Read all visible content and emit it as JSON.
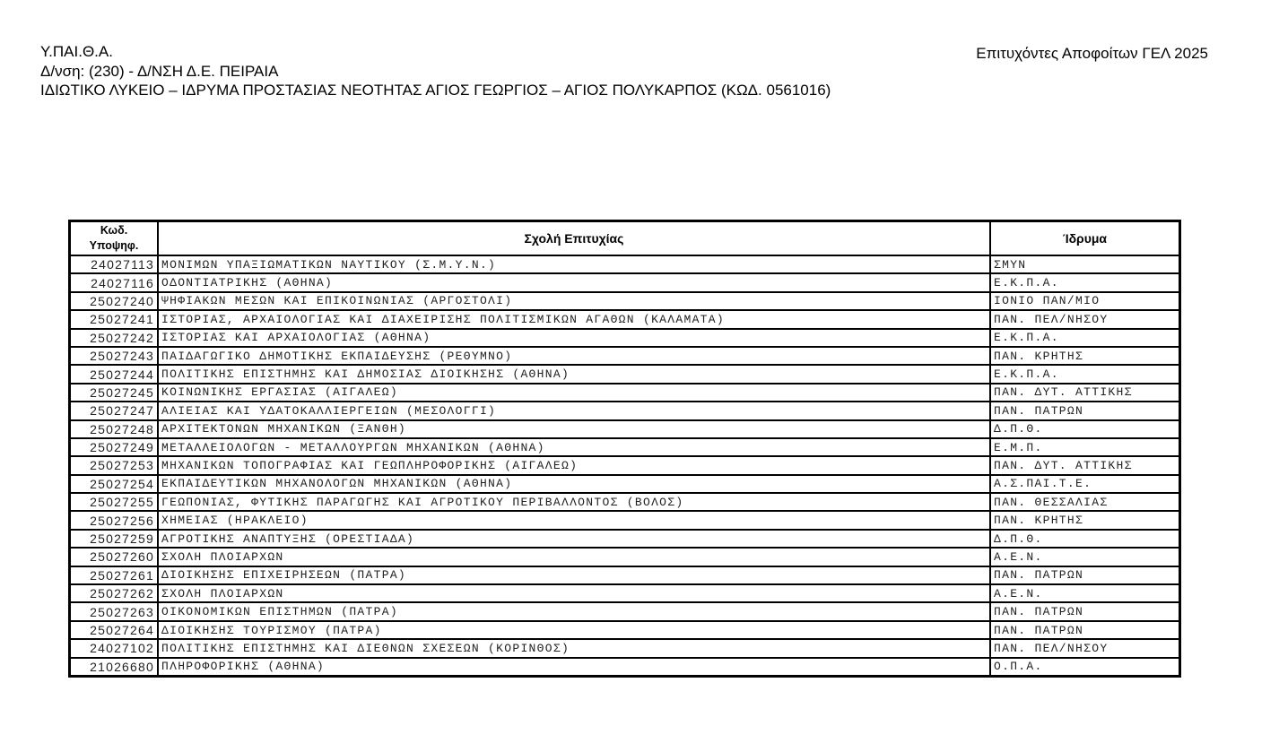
{
  "header": {
    "line1": "Υ.ΠΑΙ.Θ.Α.",
    "line2": "Δ/νση: (230) - Δ/ΝΣΗ Δ.Ε. ΠΕΙΡΑΙΑ",
    "line3": "ΙΔΙΩΤΙΚΟ ΛΥΚΕΙΟ – ΙΔΡΥΜΑ ΠΡΟΣΤΑΣΙΑΣ ΝΕΟΤΗΤΑΣ ΑΓΙΟΣ ΓΕΩΡΓΙΟΣ – ΑΓΙΟΣ ΠΟΛΥΚΑΡΠΟΣ (ΚΩΔ. 0561016)",
    "document_title": "Επιτυχόντες Αποφοίτων ΓΕΛ 2025"
  },
  "table": {
    "columns": {
      "code_line1": "Κωδ.",
      "code_line2": "Υποψηφ.",
      "school": "Σχολή Επιτυχίας",
      "institution": "Ίδρυμα"
    },
    "rows": [
      {
        "code": "24027113",
        "school": "ΜΟΝΙΜΩΝ ΥΠΑΞΙΩΜΑΤΙΚΩΝ ΝΑΥΤΙΚΟΥ (Σ.Μ.Υ.Ν.)",
        "institution": "ΣΜΥΝ"
      },
      {
        "code": "24027116",
        "school": "ΟΔΟΝΤΙΑΤΡΙΚΗΣ (ΑΘΗΝΑ)",
        "institution": "Ε.Κ.Π.Α."
      },
      {
        "code": "25027240",
        "school": "ΨΗΦΙΑΚΩΝ ΜΕΣΩΝ ΚΑΙ ΕΠΙΚΟΙΝΩΝΙΑΣ (ΑΡΓΟΣΤΟΛΙ)",
        "institution": "ΙΟΝΙΟ ΠΑΝ/ΜΙΟ"
      },
      {
        "code": "25027241",
        "school": "ΙΣΤΟΡΙΑΣ, ΑΡΧΑΙΟΛΟΓΙΑΣ ΚΑΙ ΔΙΑΧΕΙΡΙΣΗΣ ΠΟΛΙΤΙΣΜΙΚΩΝ ΑΓΑΘΩΝ (ΚΑΛΑΜΑΤΑ)",
        "institution": "ΠΑΝ. ΠΕΛ/ΝΗΣΟΥ"
      },
      {
        "code": "25027242",
        "school": "ΙΣΤΟΡΙΑΣ ΚΑΙ ΑΡΧΑΙΟΛΟΓΙΑΣ (ΑΘΗΝΑ)",
        "institution": "Ε.Κ.Π.Α."
      },
      {
        "code": "25027243",
        "school": "ΠΑΙΔΑΓΩΓΙΚΟ ΔΗΜΟΤΙΚΗΣ ΕΚΠΑΙΔΕΥΣΗΣ (ΡΕΘΥΜΝΟ)",
        "institution": "ΠΑΝ. ΚΡΗΤΗΣ"
      },
      {
        "code": "25027244",
        "school": "ΠΟΛΙΤΙΚΗΣ ΕΠΙΣΤΗΜΗΣ ΚΑΙ ΔΗΜΟΣΙΑΣ ΔΙΟΙΚΗΣΗΣ (ΑΘΗΝΑ)",
        "institution": "Ε.Κ.Π.Α."
      },
      {
        "code": "25027245",
        "school": "ΚΟΙΝΩΝΙΚΗΣ ΕΡΓΑΣΙΑΣ (ΑΙΓΑΛΕΩ)",
        "institution": "ΠΑΝ. ΔΥΤ. ΑΤΤΙΚΗΣ"
      },
      {
        "code": "25027247",
        "school": "ΑΛΙΕΙΑΣ ΚΑΙ ΥΔΑΤΟΚΑΛΛΙΕΡΓΕΙΩΝ (ΜΕΣΟΛΟΓΓΙ)",
        "institution": "ΠΑΝ. ΠΑΤΡΩΝ"
      },
      {
        "code": "25027248",
        "school": "ΑΡΧΙΤΕΚΤΟΝΩΝ ΜΗΧΑΝΙΚΩΝ (ΞΑΝΘΗ)",
        "institution": "Δ.Π.Θ."
      },
      {
        "code": "25027249",
        "school": "ΜΕΤΑΛΛΕΙΟΛΟΓΩΝ - ΜΕΤΑΛΛΟΥΡΓΩΝ ΜΗΧΑΝΙΚΩΝ (ΑΘΗΝΑ)",
        "institution": "Ε.Μ.Π."
      },
      {
        "code": "25027253",
        "school": "ΜΗΧΑΝΙΚΩΝ ΤΟΠΟΓΡΑΦΙΑΣ ΚΑΙ ΓΕΩΠΛΗΡΟΦΟΡΙΚΗΣ (ΑΙΓΑΛΕΩ)",
        "institution": "ΠΑΝ. ΔΥΤ. ΑΤΤΙΚΗΣ"
      },
      {
        "code": "25027254",
        "school": "ΕΚΠΑΙΔΕΥΤΙΚΩΝ ΜΗΧΑΝΟΛΟΓΩΝ ΜΗΧΑΝΙΚΩΝ (ΑΘΗΝΑ)",
        "institution": "Α.Σ.ΠΑΙ.Τ.Ε."
      },
      {
        "code": "25027255",
        "school": "ΓΕΩΠΟΝΙΑΣ, ΦΥΤΙΚΗΣ ΠΑΡΑΓΩΓΗΣ ΚΑΙ ΑΓΡΟΤΙΚΟΥ ΠΕΡΙΒΑΛΛΟΝΤΟΣ (ΒΟΛΟΣ)",
        "institution": "ΠΑΝ. ΘΕΣΣΑΛΙΑΣ"
      },
      {
        "code": "25027256",
        "school": "ΧΗΜΕΙΑΣ (ΗΡΑΚΛΕΙΟ)",
        "institution": "ΠΑΝ. ΚΡΗΤΗΣ"
      },
      {
        "code": "25027259",
        "school": "ΑΓΡΟΤΙΚΗΣ ΑΝΑΠΤΥΞΗΣ (ΟΡΕΣΤΙΑΔΑ)",
        "institution": "Δ.Π.Θ."
      },
      {
        "code": "25027260",
        "school": "ΣΧΟΛΗ ΠΛΟΙΑΡΧΩΝ",
        "institution": "Α.Ε.Ν."
      },
      {
        "code": "25027261",
        "school": "ΔΙΟΙΚΗΣΗΣ ΕΠΙΧΕΙΡΗΣΕΩΝ (ΠΑΤΡΑ)",
        "institution": "ΠΑΝ. ΠΑΤΡΩΝ"
      },
      {
        "code": "25027262",
        "school": "ΣΧΟΛΗ ΠΛΟΙΑΡΧΩΝ",
        "institution": "Α.Ε.Ν."
      },
      {
        "code": "25027263",
        "school": "ΟΙΚΟΝΟΜΙΚΩΝ ΕΠΙΣΤΗΜΩΝ (ΠΑΤΡΑ)",
        "institution": "ΠΑΝ. ΠΑΤΡΩΝ"
      },
      {
        "code": "25027264",
        "school": "ΔΙΟΙΚΗΣΗΣ ΤΟΥΡΙΣΜΟΥ (ΠΑΤΡΑ)",
        "institution": "ΠΑΝ. ΠΑΤΡΩΝ"
      },
      {
        "code": "24027102",
        "school": "ΠΟΛΙΤΙΚΗΣ ΕΠΙΣΤΗΜΗΣ ΚΑΙ ΔΙΕΘΝΩΝ ΣΧΕΣΕΩΝ (ΚΟΡΙΝΘΟΣ)",
        "institution": "ΠΑΝ. ΠΕΛ/ΝΗΣΟΥ"
      },
      {
        "code": "21026680",
        "school": "ΠΛΗΡΟΦΟΡΙΚΗΣ (ΑΘΗΝΑ)",
        "institution": "Ο.Π.Α."
      }
    ]
  }
}
